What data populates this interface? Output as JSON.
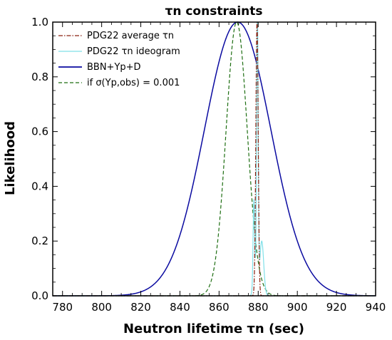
{
  "chart_data": {
    "type": "line",
    "title": "τn constraints",
    "xlabel": "Neutron lifetime τn (sec)",
    "ylabel": "Likelihood",
    "xlim": [
      775,
      940
    ],
    "ylim": [
      0,
      1
    ],
    "x_ticks": [
      780,
      800,
      820,
      840,
      860,
      880,
      900,
      920,
      940
    ],
    "x_tick_labels": [
      "780",
      "800",
      "820",
      "840",
      "860",
      "880",
      "900",
      "920",
      "940"
    ],
    "y_ticks": [
      0,
      0.2,
      0.4,
      0.6,
      0.8,
      1
    ],
    "y_tick_labels": [
      "0.0",
      "0.2",
      "0.4",
      "0.6",
      "0.8",
      "1.0"
    ],
    "legend_position": "upper-left",
    "series": [
      {
        "name": "PDG22 average τn",
        "color": "#8b2010",
        "style": "dashdot",
        "shape": {
          "kind": "gaussian",
          "mean": 879.4,
          "sigma": 0.6,
          "peak": 1.0
        }
      },
      {
        "name": "PDG22 τn ideogram",
        "color": "#7fe0e8",
        "style": "solid",
        "shape": {
          "kind": "ideogram",
          "components": [
            {
              "mean": 879.6,
              "sigma": 0.4,
              "peak": 1.0
            },
            {
              "mean": 881.8,
              "sigma": 1.0,
              "peak": 0.2
            },
            {
              "mean": 878.2,
              "sigma": 0.8,
              "peak": 0.06
            },
            {
              "mean": 877.8,
              "sigma": 0.4,
              "peak": 0.3
            }
          ]
        }
      },
      {
        "name": "BBN+Yp+D",
        "color": "#0a0aa0",
        "style": "solid",
        "shape": {
          "kind": "gaussian",
          "mean": 869.5,
          "sigma": 17.0,
          "peak": 1.0
        }
      },
      {
        "name": "if σ(Yp,obs) = 0.001",
        "color": "#1e6e12",
        "style": "dashed",
        "shape": {
          "kind": "gaussian",
          "mean": 869.0,
          "sigma": 5.4,
          "peak": 1.0
        }
      }
    ]
  }
}
